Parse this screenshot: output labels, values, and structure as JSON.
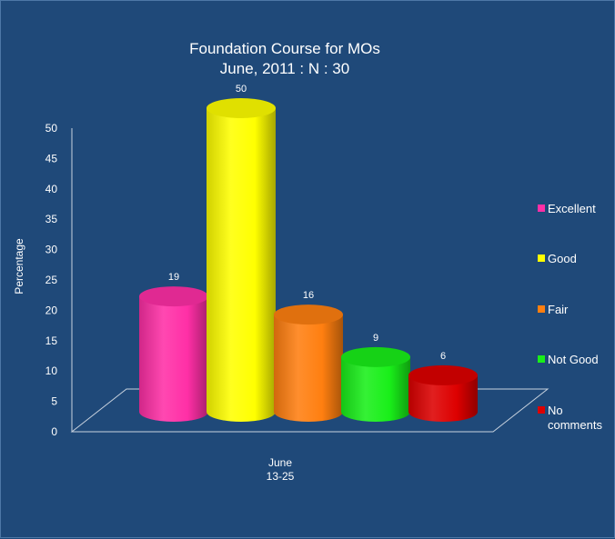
{
  "chart_data": {
    "type": "bar",
    "title_lines": [
      "Foundation Course for  MOs",
      "June, 2011 : N : 30"
    ],
    "ylabel": "Percentage",
    "ylim": [
      0,
      50
    ],
    "yticks": [
      "0",
      "5",
      "10",
      "15",
      "20",
      "25",
      "30",
      "35",
      "40",
      "45",
      "50"
    ],
    "category_lines": [
      "June",
      "13-25"
    ],
    "series": [
      {
        "name": "Excellent",
        "value": 19,
        "color": "#ff2fa6"
      },
      {
        "name": "Good",
        "value": 50,
        "color": "#ffff00"
      },
      {
        "name": "Fair",
        "value": 16,
        "color": "#ff7f10"
      },
      {
        "name": "Not Good",
        "value": 9,
        "color": "#19ef19"
      },
      {
        "name": "No comments",
        "value": 6,
        "color": "#dd0000"
      }
    ],
    "legend_lines": [
      [
        "Excellent"
      ],
      [
        "Good"
      ],
      [
        "Fair"
      ],
      [
        "Not Good"
      ],
      [
        "No",
        "comments"
      ]
    ],
    "legend_position": "right",
    "grid": false
  }
}
